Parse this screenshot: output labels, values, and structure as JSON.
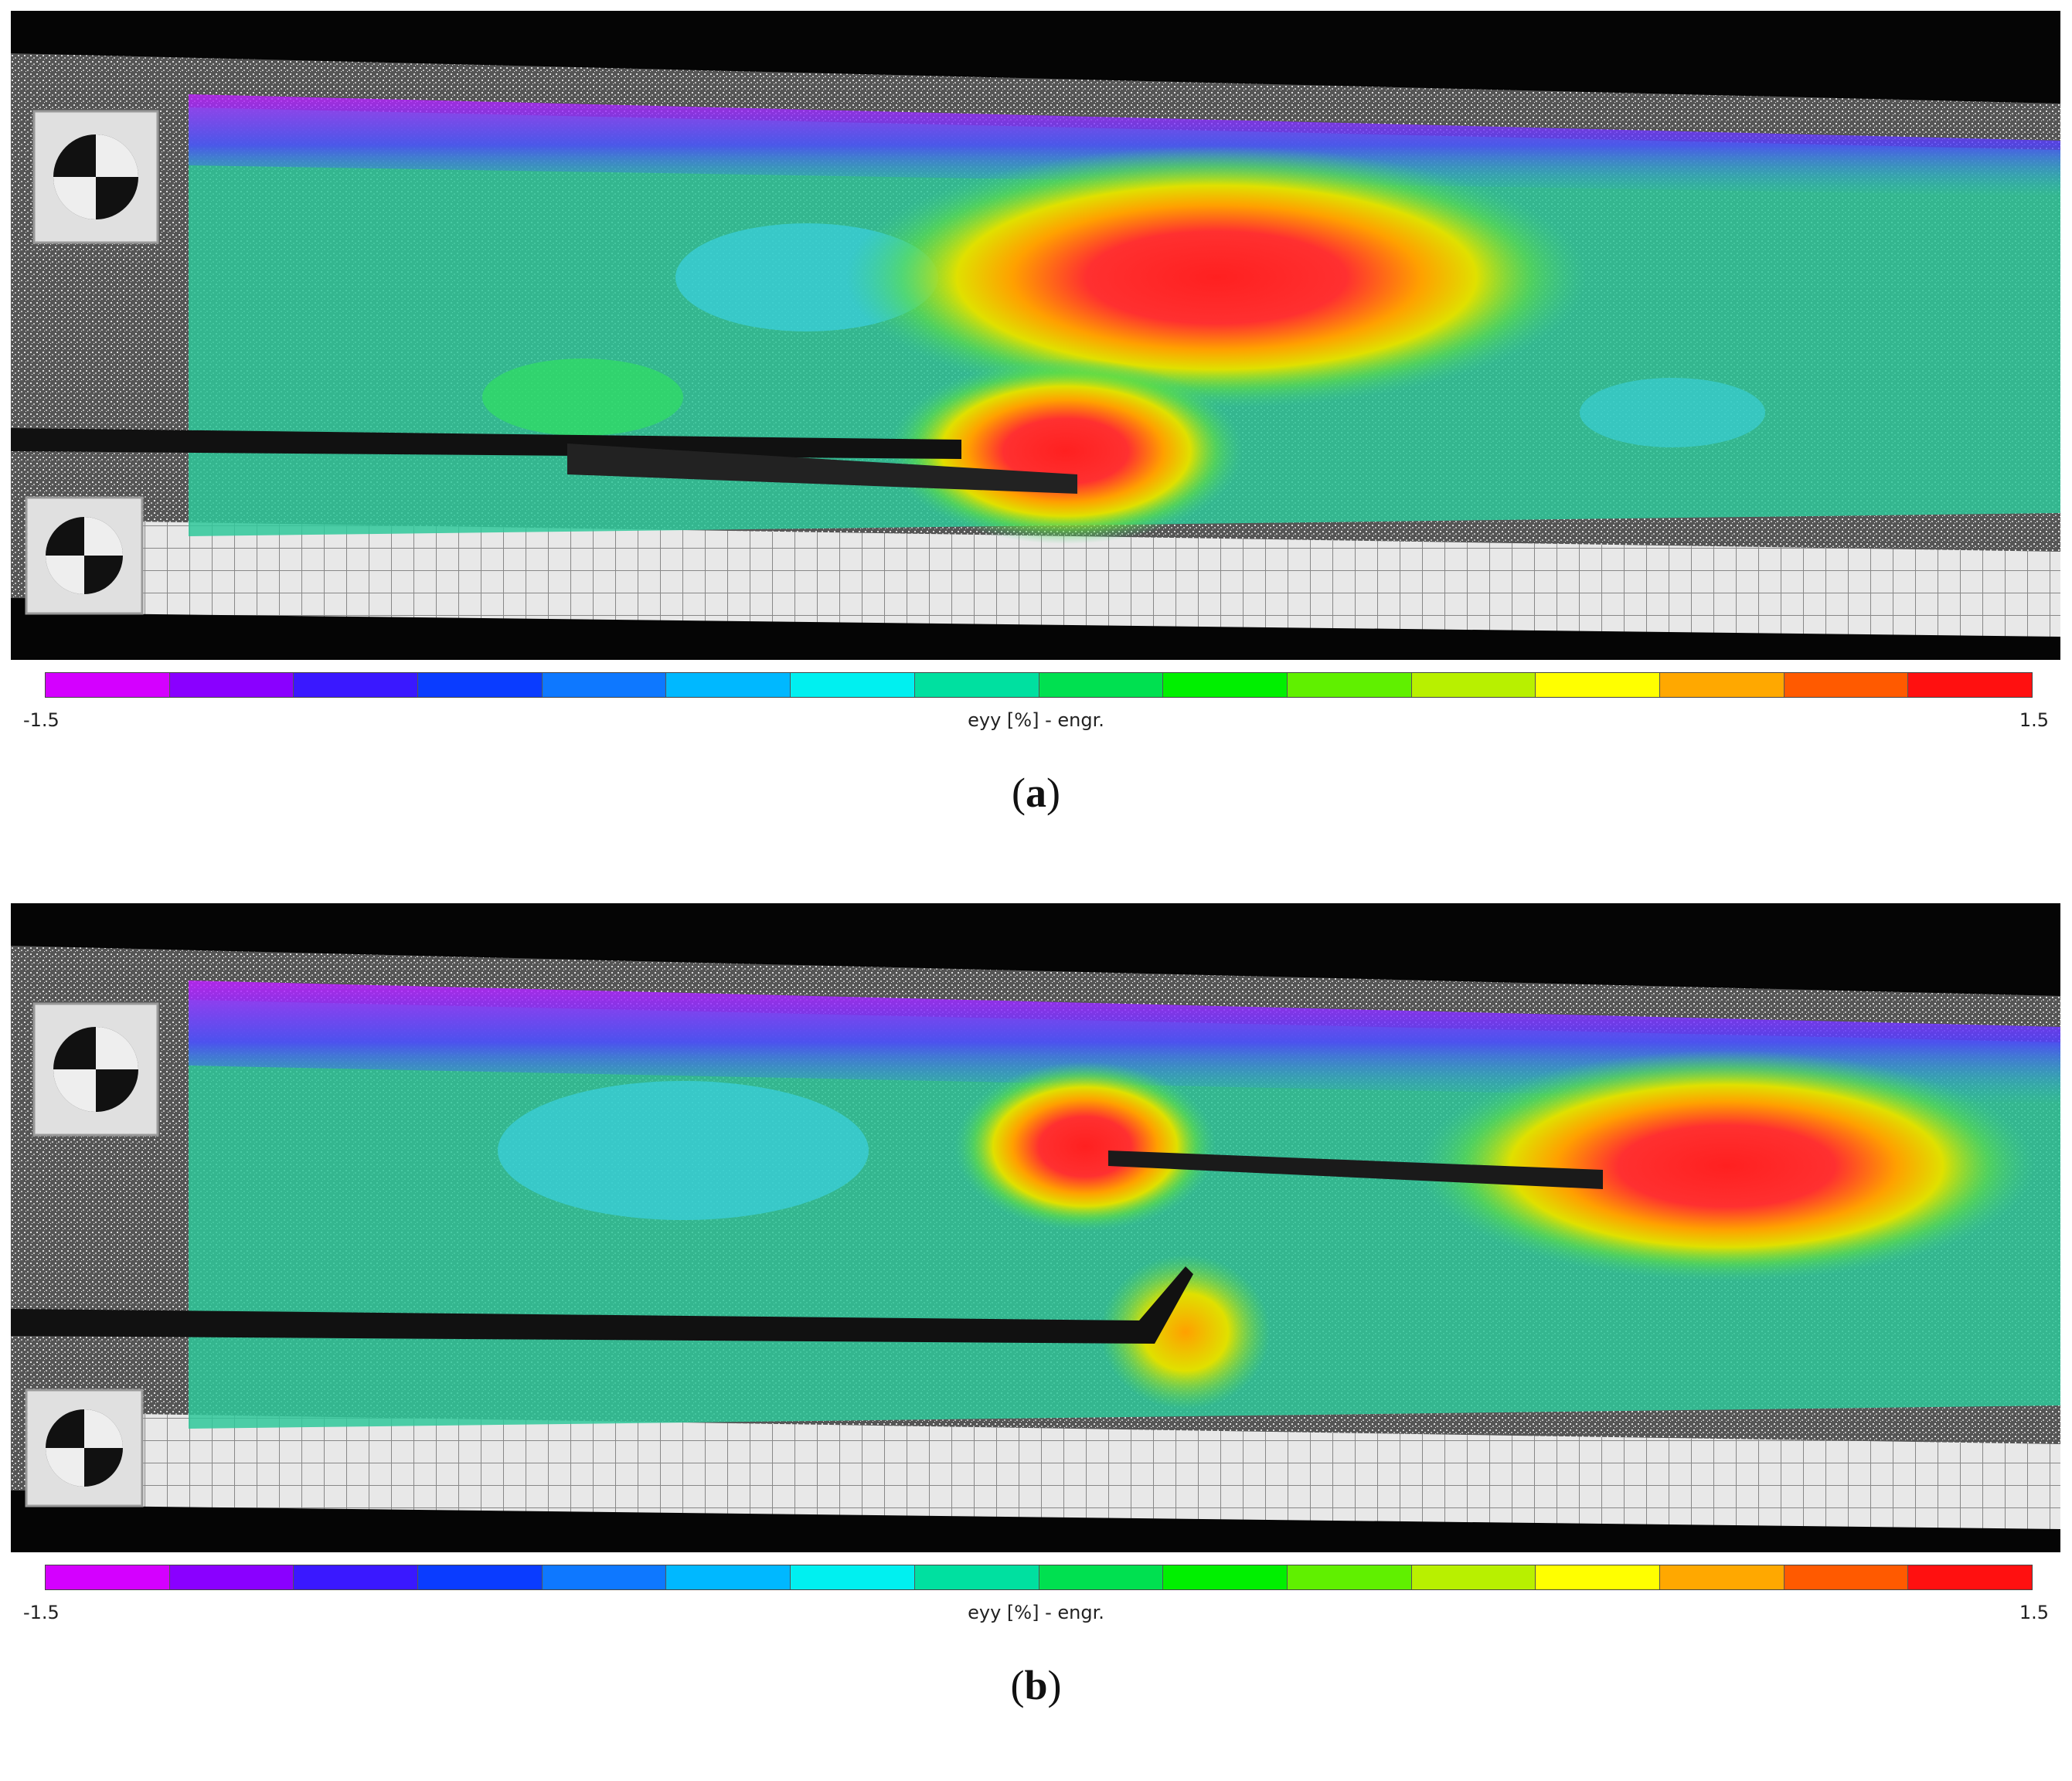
{
  "panels": [
    {
      "caption_open": "(",
      "caption_letter": "a",
      "caption_close": ")",
      "colorbar": {
        "min_label": "-1.5",
        "max_label": "1.5",
        "label": "eyy [%] - engr."
      }
    },
    {
      "caption_open": "(",
      "caption_letter": "b",
      "caption_close": ")",
      "colorbar": {
        "min_label": "-1.5",
        "max_label": "1.5",
        "label": "eyy [%] - engr."
      }
    }
  ],
  "colorbar_colors": [
    "#d400ff",
    "#8a00ff",
    "#3a18ff",
    "#0a3cff",
    "#0e78ff",
    "#00b8ff",
    "#00f0f0",
    "#00e0a0",
    "#00e050",
    "#00f000",
    "#60f000",
    "#b8f000",
    "#ffff00",
    "#ffa800",
    "#ff5a00",
    "#ff1010"
  ]
}
